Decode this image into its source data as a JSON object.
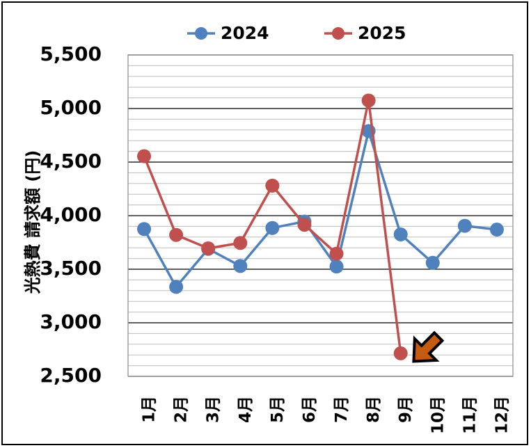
{
  "chart_data": {
    "type": "line",
    "categories": [
      "1月",
      "2月",
      "3月",
      "4月",
      "5月",
      "6月",
      "7月",
      "8月",
      "9月",
      "10月",
      "11月",
      "12月"
    ],
    "series": [
      {
        "name": "2024",
        "color": "#4F81BD",
        "values": [
          3875,
          3335,
          3690,
          3530,
          3885,
          3945,
          3525,
          4790,
          3825,
          3560,
          3905,
          3870
        ]
      },
      {
        "name": "2025",
        "color": "#C0504D",
        "values": [
          4555,
          3820,
          3695,
          3745,
          4280,
          3915,
          3645,
          5075,
          2715,
          null,
          null,
          null
        ]
      }
    ],
    "ylabel": "光熱費 請求額 (円)",
    "ylim": [
      2500,
      5500
    ],
    "yticks": [
      "2,500",
      "3,000",
      "3,500",
      "4,000",
      "4,500",
      "5,000",
      "5,500"
    ],
    "ytick_values": [
      2500,
      3000,
      3500,
      4000,
      4500,
      5000,
      5500
    ],
    "grid": {
      "major_step": 500,
      "minor_step": 100
    },
    "legend": "top",
    "annotation": {
      "type": "arrow",
      "direction": "down-left",
      "color": "#C55A11",
      "near": "9月"
    }
  }
}
